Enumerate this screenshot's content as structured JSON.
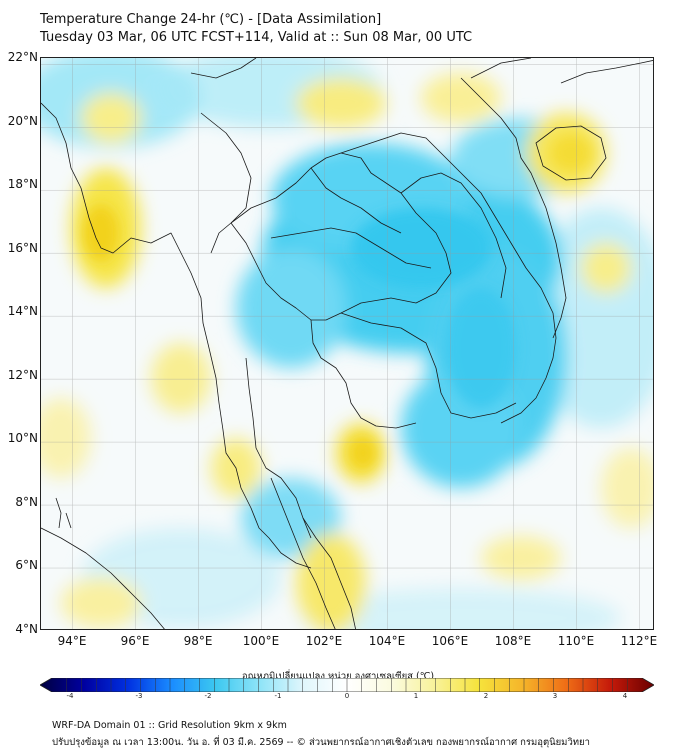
{
  "title_line1": "Temperature Change 24-hr (℃) - [Data Assimilation]",
  "title_line2": "Tuesday 03 Mar, 06 UTC FCST+114, Valid at :: Sun 08 Mar, 00 UTC",
  "lat_labels": [
    "22°N",
    "20°N",
    "18°N",
    "16°N",
    "14°N",
    "12°N",
    "10°N",
    "8°N",
    "6°N",
    "4°N"
  ],
  "lon_labels": [
    "94°E",
    "96°E",
    "98°E",
    "100°E",
    "102°E",
    "104°E",
    "106°E",
    "108°E",
    "110°E",
    "112°E"
  ],
  "map_extent": {
    "lon_min": 93,
    "lon_max": 112.5,
    "lat_min": 4,
    "lat_max": 22.2
  },
  "colorbar": {
    "title": "อุณหภูมิเปลี่ยนแปลง หน่วย องศาเซลเซียส (℃)",
    "min": -4,
    "max": 4,
    "tick_labels": [
      "-4",
      "-3",
      "-2",
      "-1",
      "0",
      "1",
      "2",
      "3",
      "4"
    ],
    "colors": [
      "#00003f",
      "#0000a0",
      "#0030e0",
      "#1a8cff",
      "#3cc8f0",
      "#8ee4f8",
      "#e0f6fc",
      "#ffffff",
      "#fbfbe0",
      "#f8f29a",
      "#f6e33c",
      "#f5b52a",
      "#ef6d16",
      "#c51a0a",
      "#6a0000"
    ]
  },
  "footer_line1": "WRF-DA Domain 01 :: Grid Resolution 9km x 9km",
  "footer_line2": "ปรับปรุงข้อมูล ณ เวลา 13:00น. วัน อ. ที่ 03 มี.ค. 2569 -- © ส่วนพยากรณ์อากาศเชิงตัวเลข กองพยากรณ์อากาศ กรมอุตุนิยมวิทยา"
}
